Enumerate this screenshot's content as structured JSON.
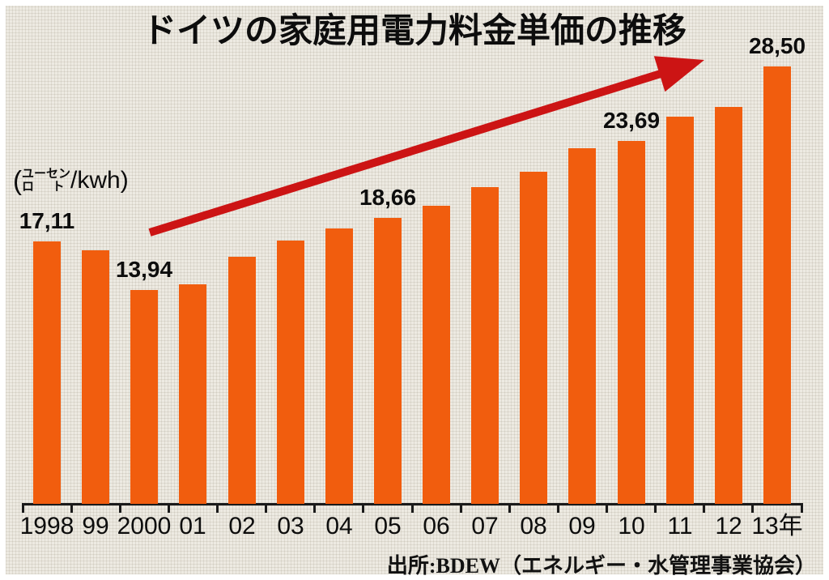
{
  "title": "ドイツの家庭用電力料金単価の推移",
  "unit_label": {
    "reading": "（ユーロセント/kwh）",
    "open_paren": "(",
    "stack1_top": "ユー",
    "stack1_bottom": "ロ",
    "stack2_top": "セン",
    "stack2_bottom": "ト",
    "suffix": "/kwh)"
  },
  "source": "出所:BDEW（エネルギー・水管理事業協会）",
  "colors": {
    "bar": "#f15d0e",
    "arrow": "#cc1414",
    "background": "#edeae2",
    "text": "#0d0d0d"
  },
  "chart_data": {
    "type": "bar",
    "title": "ドイツの家庭用電力料金単価の推移",
    "ylabel": "ユーロセント/kwh",
    "xlabel": "年",
    "ylim": [
      0,
      30
    ],
    "grid": false,
    "legend": null,
    "categories": [
      "1998",
      "99",
      "2000",
      "01",
      "02",
      "03",
      "04",
      "05",
      "06",
      "07",
      "08",
      "09",
      "10",
      "11",
      "12",
      "13年"
    ],
    "values": [
      17.11,
      16.53,
      13.94,
      14.32,
      16.11,
      17.19,
      17.96,
      18.66,
      19.46,
      20.64,
      21.65,
      23.21,
      23.69,
      25.23,
      25.89,
      28.5
    ],
    "labeled_points": [
      {
        "index": 0,
        "label": "17,11"
      },
      {
        "index": 2,
        "label": "13,94"
      },
      {
        "index": 7,
        "label": "18,66"
      },
      {
        "index": 12,
        "label": "23,69"
      },
      {
        "index": 15,
        "label": "28,50"
      }
    ],
    "annotations": [
      {
        "type": "trend-arrow",
        "direction": "up-right",
        "color": "#cc1414"
      }
    ]
  }
}
